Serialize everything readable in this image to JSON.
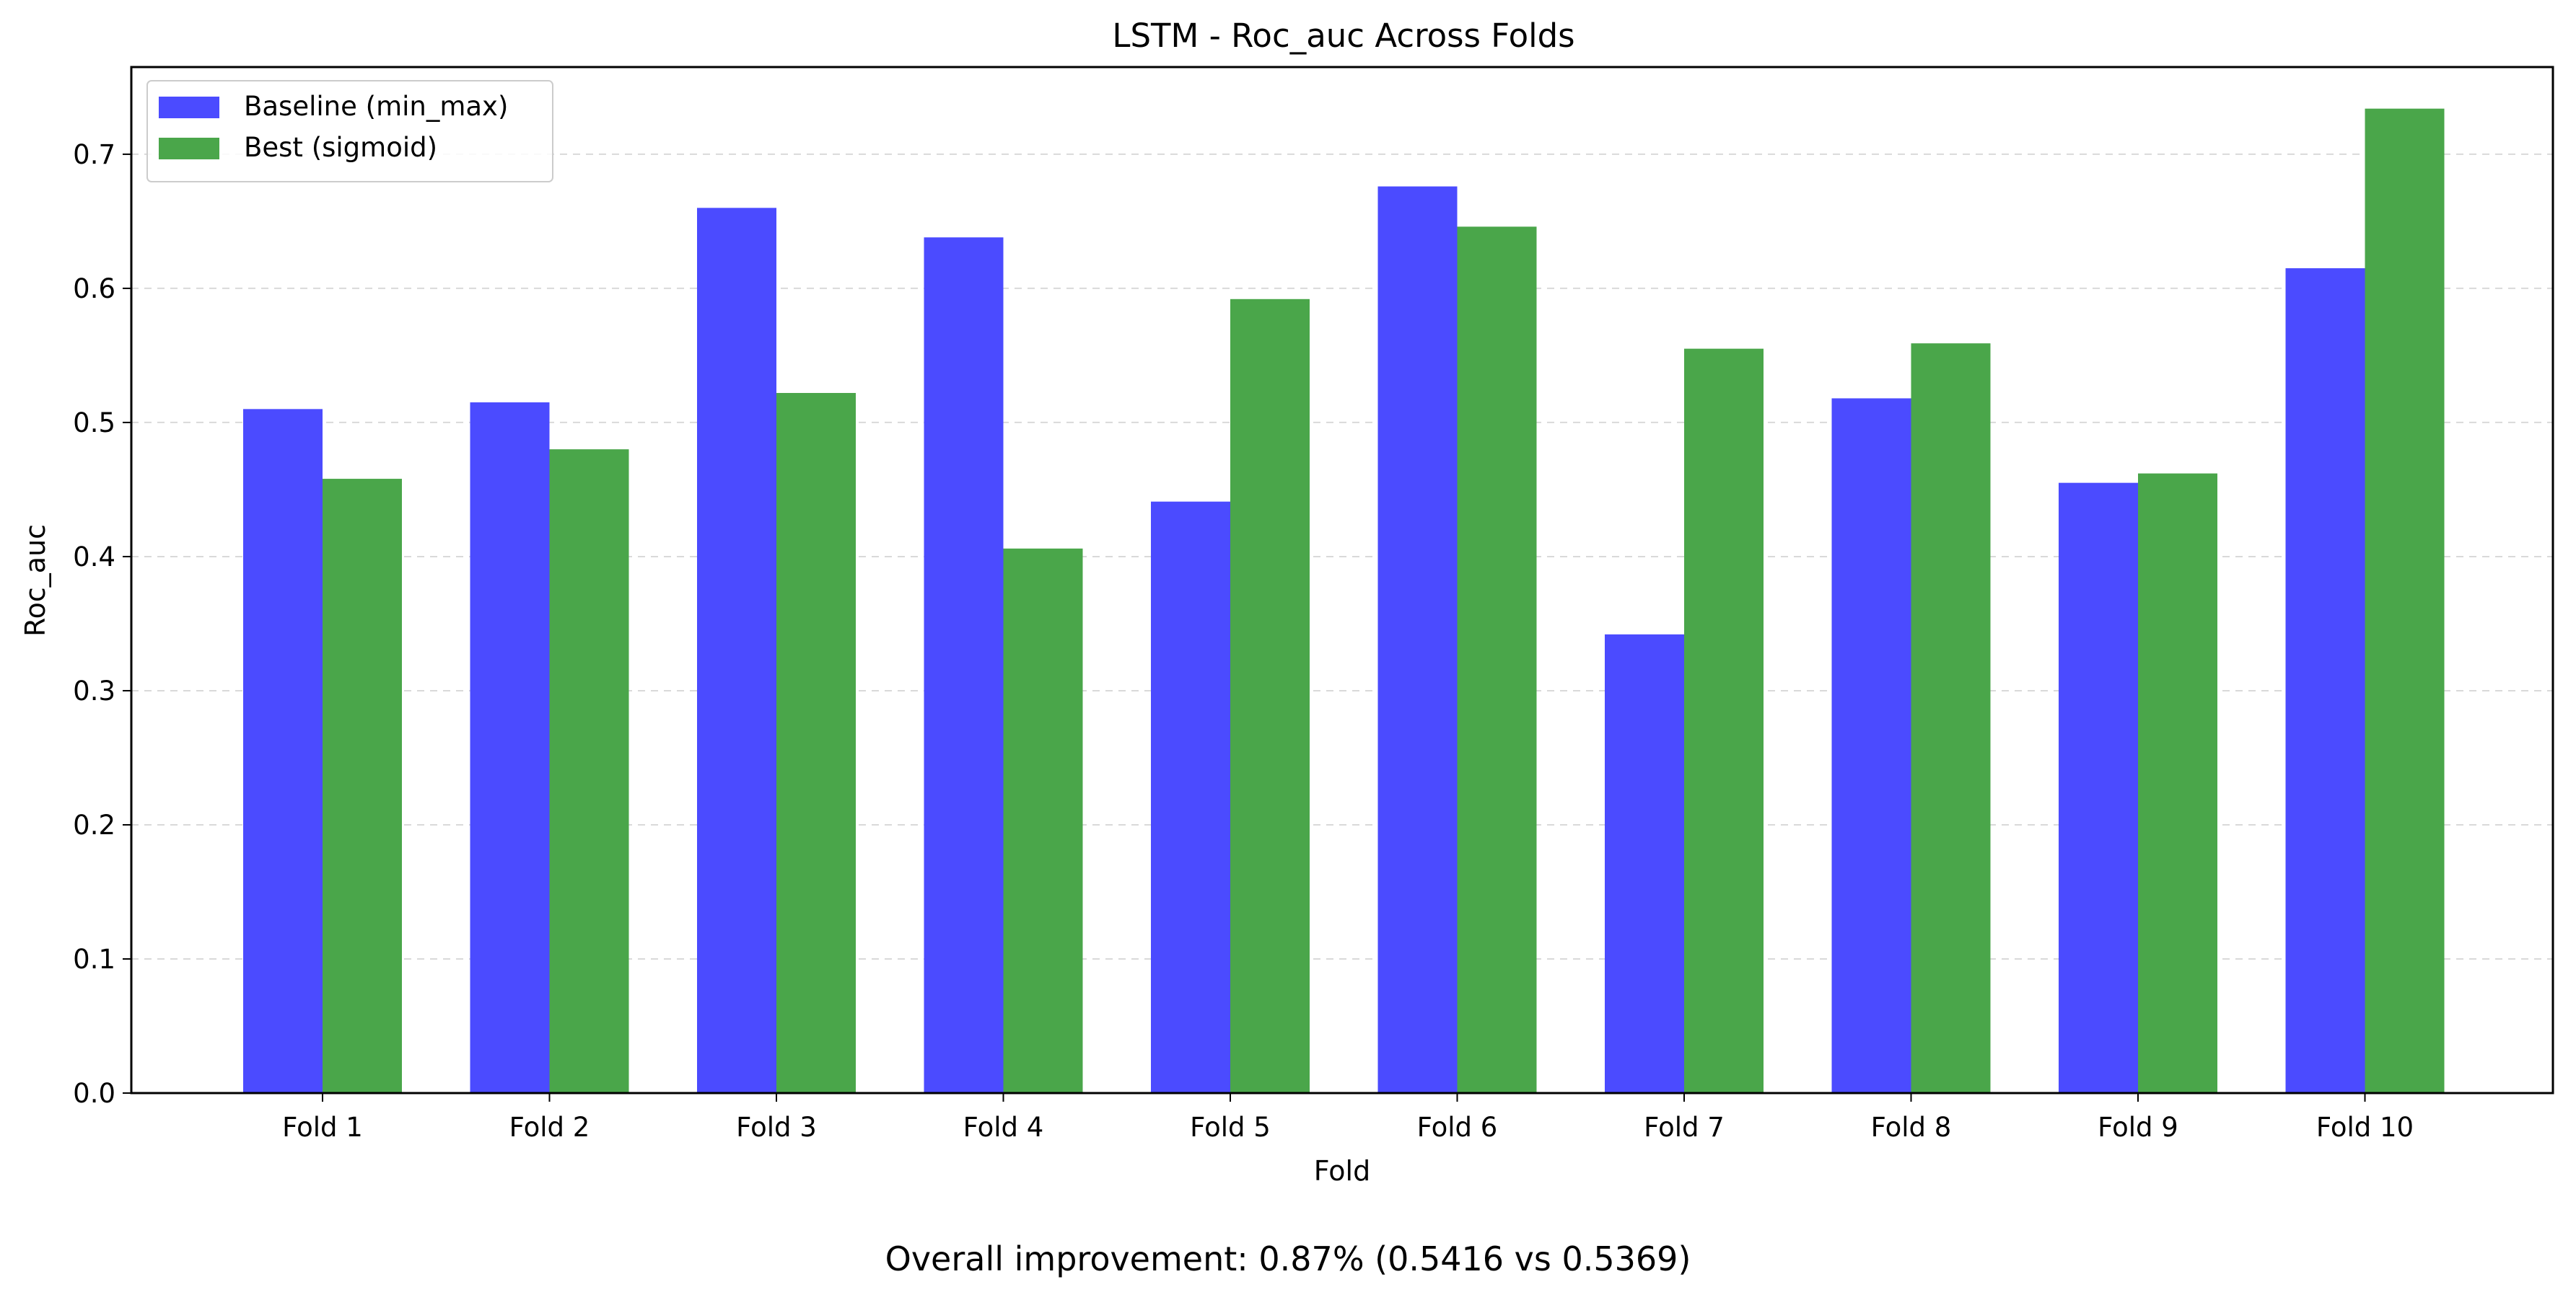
{
  "chart_data": {
    "type": "bar",
    "title": "LSTM - Roc_auc Across Folds",
    "xlabel": "Fold",
    "ylabel": "Roc_auc",
    "categories": [
      "Fold 1",
      "Fold 2",
      "Fold 3",
      "Fold 4",
      "Fold 5",
      "Fold 6",
      "Fold 7",
      "Fold 8",
      "Fold 9",
      "Fold 10"
    ],
    "series": [
      {
        "name": "Baseline (min_max)",
        "color": "#4b4bff",
        "values": [
          0.51,
          0.515,
          0.66,
          0.638,
          0.441,
          0.676,
          0.342,
          0.518,
          0.455,
          0.615
        ]
      },
      {
        "name": "Best (sigmoid)",
        "color": "#4aa64a",
        "values": [
          0.458,
          0.48,
          0.522,
          0.406,
          0.592,
          0.646,
          0.555,
          0.559,
          0.462,
          0.734
        ]
      }
    ],
    "ylim": [
      0,
      0.765
    ],
    "yticks": [
      "0.0",
      "0.1",
      "0.2",
      "0.3",
      "0.4",
      "0.5",
      "0.6",
      "0.7"
    ],
    "grid": "y-dashed",
    "legend_position": "top-left",
    "caption": "Overall improvement: 0.87% (0.5416 vs 0.5369)"
  }
}
